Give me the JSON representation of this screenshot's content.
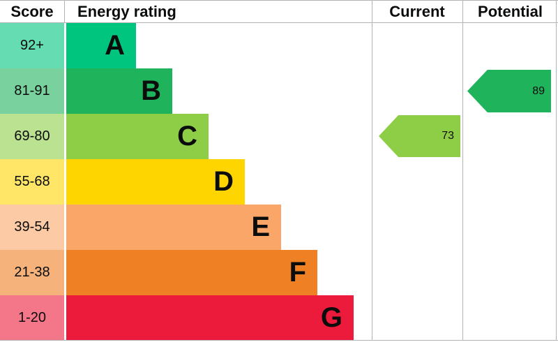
{
  "header": {
    "score": "Score",
    "energy_rating": "Energy rating",
    "current": "Current",
    "potential": "Potential"
  },
  "bands": [
    {
      "score": "92+",
      "letter": "A",
      "color": "#00c57e"
    },
    {
      "score": "81-91",
      "letter": "B",
      "color": "#1fb35b"
    },
    {
      "score": "69-80",
      "letter": "C",
      "color": "#8dce46"
    },
    {
      "score": "55-68",
      "letter": "D",
      "color": "#ffd500"
    },
    {
      "score": "39-54",
      "letter": "E",
      "color": "#faa669"
    },
    {
      "score": "21-38",
      "letter": "F",
      "color": "#ef8023"
    },
    {
      "score": "1-20",
      "letter": "G",
      "color": "#ed1b3b"
    }
  ],
  "current": {
    "value": "73",
    "band": "C",
    "color": "#8dce46"
  },
  "potential": {
    "value": "89",
    "band": "B",
    "color": "#1fb35b"
  },
  "chart_data": {
    "type": "bar",
    "title": "Energy rating",
    "categories": [
      "A",
      "B",
      "C",
      "D",
      "E",
      "F",
      "G"
    ],
    "score_ranges": [
      "92+",
      "81-91",
      "69-80",
      "55-68",
      "39-54",
      "21-38",
      "1-20"
    ],
    "colors": [
      "#00c57e",
      "#1fb35b",
      "#8dce46",
      "#ffd500",
      "#faa669",
      "#ef8023",
      "#ed1b3b"
    ],
    "bar_lengths_relative": [
      1.0,
      1.52,
      2.05,
      2.57,
      3.09,
      3.6,
      4.12
    ],
    "annotations": [
      {
        "label": "Current",
        "value": 73,
        "band": "C"
      },
      {
        "label": "Potential",
        "value": 89,
        "band": "B"
      }
    ],
    "legend_position": "none",
    "grid": false
  }
}
